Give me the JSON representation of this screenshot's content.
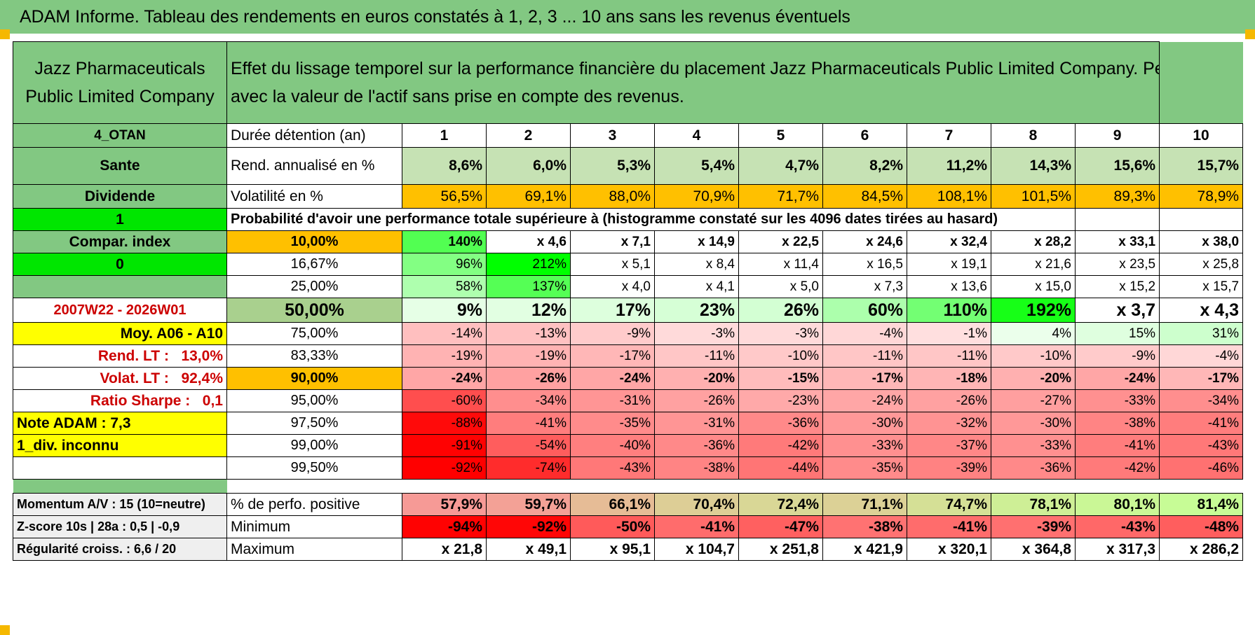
{
  "header": {
    "title": "ADAM Informe. Tableau des rendements en euros constatés à 1, 2, 3 ... 10 ans sans les revenus éventuels"
  },
  "company": {
    "name_line1": "Jazz Pharmaceuticals",
    "name_line2": "Public Limited Company"
  },
  "description": {
    "line1": "Effet du lissage temporel sur la performance financière du placement Jazz Pharmaceuticals Public Limited Company. Performances",
    "line2": "avec la valeur de l'actif sans prise en compte des revenus."
  },
  "side": {
    "code": "4_OTAN",
    "sector": "Sante",
    "dividend": "Dividende",
    "flag1": "1",
    "compar_index": "Compar. index",
    "flag0": "0",
    "period": "2007W22 - 2026W01",
    "avg_label": "Moy. A06 - A10",
    "rend_lt_label": "Rend. LT :",
    "rend_lt_value": "13,0%",
    "volat_lt_label": "Volat. LT :",
    "volat_lt_value": "92,4%",
    "sharpe_label": "Ratio Sharpe :",
    "sharpe_value": "0,1",
    "note": "Note ADAM : 7,3",
    "div_status": "1_div. inconnu"
  },
  "labels": {
    "duration": "Durée détention (an)",
    "annual_return": "Rend. annualisé en %",
    "volatility": "Volatilité en %",
    "probability": "Probabilité d'avoir une performance totale supérieure à (histogramme constaté sur les 4096 dates tirées au hasard)",
    "positive": "% de perfo. positive",
    "minimum": "Minimum",
    "maximum": "Maximum"
  },
  "years": [
    "1",
    "2",
    "3",
    "4",
    "5",
    "6",
    "7",
    "8",
    "9",
    "10"
  ],
  "annual_return": [
    "8,6%",
    "6,0%",
    "5,3%",
    "5,4%",
    "4,7%",
    "8,2%",
    "11,2%",
    "14,3%",
    "15,6%",
    "15,7%"
  ],
  "volatility": [
    "56,5%",
    "69,1%",
    "88,0%",
    "70,9%",
    "71,7%",
    "84,5%",
    "108,1%",
    "101,5%",
    "89,3%",
    "78,9%"
  ],
  "probabilities": [
    {
      "pct": "10,00%",
      "values": [
        "140%",
        "x 4,6",
        "x 7,1",
        "x 14,9",
        "x 22,5",
        "x 24,6",
        "x 32,4",
        "x 28,2",
        "x 33,1",
        "x 38,0"
      ]
    },
    {
      "pct": "16,67%",
      "values": [
        "96%",
        "212%",
        "x 5,1",
        "x 8,4",
        "x 11,4",
        "x 16,5",
        "x 19,1",
        "x 21,6",
        "x 23,5",
        "x 25,8"
      ]
    },
    {
      "pct": "25,00%",
      "values": [
        "58%",
        "137%",
        "x 4,0",
        "x 4,1",
        "x 5,0",
        "x 7,3",
        "x 13,6",
        "x 15,0",
        "x 15,2",
        "x 15,7"
      ]
    },
    {
      "pct": "50,00%",
      "values": [
        "9%",
        "12%",
        "17%",
        "23%",
        "26%",
        "60%",
        "110%",
        "192%",
        "x 3,7",
        "x 4,3"
      ]
    },
    {
      "pct": "75,00%",
      "values": [
        "-14%",
        "-13%",
        "-9%",
        "-3%",
        "-3%",
        "-4%",
        "-1%",
        "4%",
        "15%",
        "31%"
      ]
    },
    {
      "pct": "83,33%",
      "values": [
        "-19%",
        "-19%",
        "-17%",
        "-11%",
        "-10%",
        "-11%",
        "-11%",
        "-10%",
        "-9%",
        "-4%"
      ]
    },
    {
      "pct": "90,00%",
      "values": [
        "-24%",
        "-26%",
        "-24%",
        "-20%",
        "-15%",
        "-17%",
        "-18%",
        "-20%",
        "-24%",
        "-17%"
      ]
    },
    {
      "pct": "95,00%",
      "values": [
        "-60%",
        "-34%",
        "-31%",
        "-26%",
        "-23%",
        "-24%",
        "-26%",
        "-27%",
        "-33%",
        "-34%"
      ]
    },
    {
      "pct": "97,50%",
      "values": [
        "-88%",
        "-41%",
        "-35%",
        "-31%",
        "-36%",
        "-30%",
        "-32%",
        "-30%",
        "-38%",
        "-41%"
      ]
    },
    {
      "pct": "99,00%",
      "values": [
        "-91%",
        "-54%",
        "-40%",
        "-36%",
        "-42%",
        "-33%",
        "-37%",
        "-33%",
        "-41%",
        "-43%"
      ]
    },
    {
      "pct": "99,50%",
      "values": [
        "-92%",
        "-74%",
        "-43%",
        "-38%",
        "-44%",
        "-35%",
        "-39%",
        "-36%",
        "-42%",
        "-46%"
      ]
    }
  ],
  "bottom": {
    "momentum": "Momentum A/V : 15 (10=neutre)",
    "zscore": "Z-score 10s | 28a : 0,5 | -0,9",
    "regularity": "Régularité croiss. : 6,6 / 20",
    "positive": [
      "57,9%",
      "59,7%",
      "66,1%",
      "70,4%",
      "72,4%",
      "71,1%",
      "74,7%",
      "78,1%",
      "80,1%",
      "81,4%"
    ],
    "minimum": [
      "-94%",
      "-92%",
      "-50%",
      "-41%",
      "-47%",
      "-38%",
      "-41%",
      "-39%",
      "-43%",
      "-48%"
    ],
    "maximum": [
      "x 21,8",
      "x 49,1",
      "x 95,1",
      "x 104,7",
      "x 251,8",
      "x 421,9",
      "x 320,1",
      "x 364,8",
      "x 317,3",
      "x 286,2"
    ]
  },
  "colors": {
    "header_green": "#82c882",
    "bright_green": "#00e600",
    "yellow": "#ffff00",
    "orange": "#ffc000",
    "return_green": "#c6e2b4",
    "label_red": "#cc0000"
  }
}
